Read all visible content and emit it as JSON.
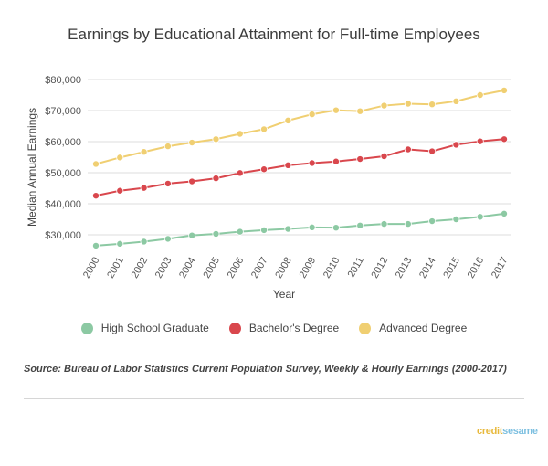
{
  "chart_data": {
    "type": "line",
    "title": "Earnings by Educational Attainment for Full-time Employees",
    "xlabel": "Year",
    "ylabel": "Median Annual Earnings",
    "ylim": [
      25000,
      80000
    ],
    "yticks": [
      30000,
      40000,
      50000,
      60000,
      70000,
      80000
    ],
    "ytick_labels": [
      "$30,000",
      "$40,000",
      "$50,000",
      "$60,000",
      "$70,000",
      "$80,000"
    ],
    "x": [
      "2000",
      "2001",
      "2002",
      "2003",
      "2004",
      "2005",
      "2006",
      "2007",
      "2008",
      "2009",
      "2010",
      "2011",
      "2012",
      "2013",
      "2014",
      "2015",
      "2016",
      "2017"
    ],
    "grid": true,
    "legend_position": "bottom",
    "series": [
      {
        "name": "High School Graduate",
        "color": "#8cc9a3",
        "values": [
          26500,
          27100,
          27800,
          28700,
          29800,
          30300,
          31000,
          31500,
          31900,
          32400,
          32300,
          33000,
          33500,
          33500,
          34400,
          35000,
          35800,
          36800
        ]
      },
      {
        "name": "Bachelor's Degree",
        "color": "#d9474d",
        "values": [
          42600,
          44200,
          45100,
          46500,
          47200,
          48200,
          49900,
          51100,
          52400,
          53100,
          53600,
          54400,
          55300,
          57500,
          56900,
          59000,
          60100,
          60800
        ]
      },
      {
        "name": "Advanced Degree",
        "color": "#f0cf72",
        "values": [
          52800,
          54900,
          56700,
          58500,
          59700,
          60800,
          62500,
          64000,
          66800,
          68800,
          70100,
          69800,
          71600,
          72200,
          72000,
          73000,
          75000,
          76500
        ]
      }
    ]
  },
  "source": "Source: Bureau of Labor Statistics Current Population Survey, Weekly & Hourly Earnings (2000-2017)",
  "brand": {
    "part1": "credit",
    "part2": "sesame"
  }
}
